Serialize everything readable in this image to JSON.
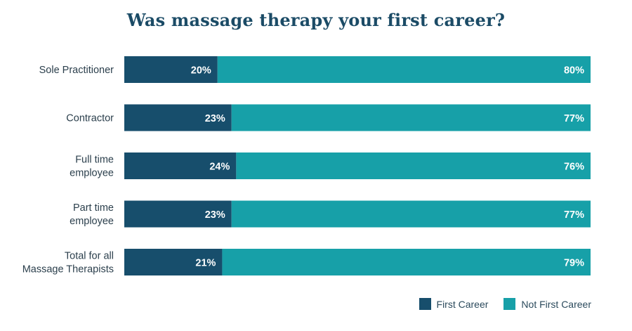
{
  "chart_data": {
    "type": "bar",
    "orientation": "horizontal",
    "stacked": true,
    "title": "Was massage therapy your first career?",
    "categories": [
      [
        "Sole Practitioner"
      ],
      [
        "Contractor"
      ],
      [
        "Full time",
        "employee"
      ],
      [
        "Part time",
        "employee"
      ],
      [
        "Total for all",
        "Massage Therapists"
      ]
    ],
    "series": [
      {
        "name": "First Career",
        "color": "#174e6c",
        "values": [
          20,
          23,
          24,
          23,
          21
        ],
        "labels": [
          "20%",
          "23%",
          "24%",
          "23%",
          "21%"
        ]
      },
      {
        "name": "Not First Career",
        "color": "#17a0a8",
        "values": [
          80,
          77,
          76,
          77,
          79
        ],
        "labels": [
          "80%",
          "77%",
          "76%",
          "77%",
          "79%"
        ]
      }
    ],
    "xlim": [
      0,
      100
    ],
    "unit": "%",
    "grid": false,
    "legend": "bottom-right"
  }
}
